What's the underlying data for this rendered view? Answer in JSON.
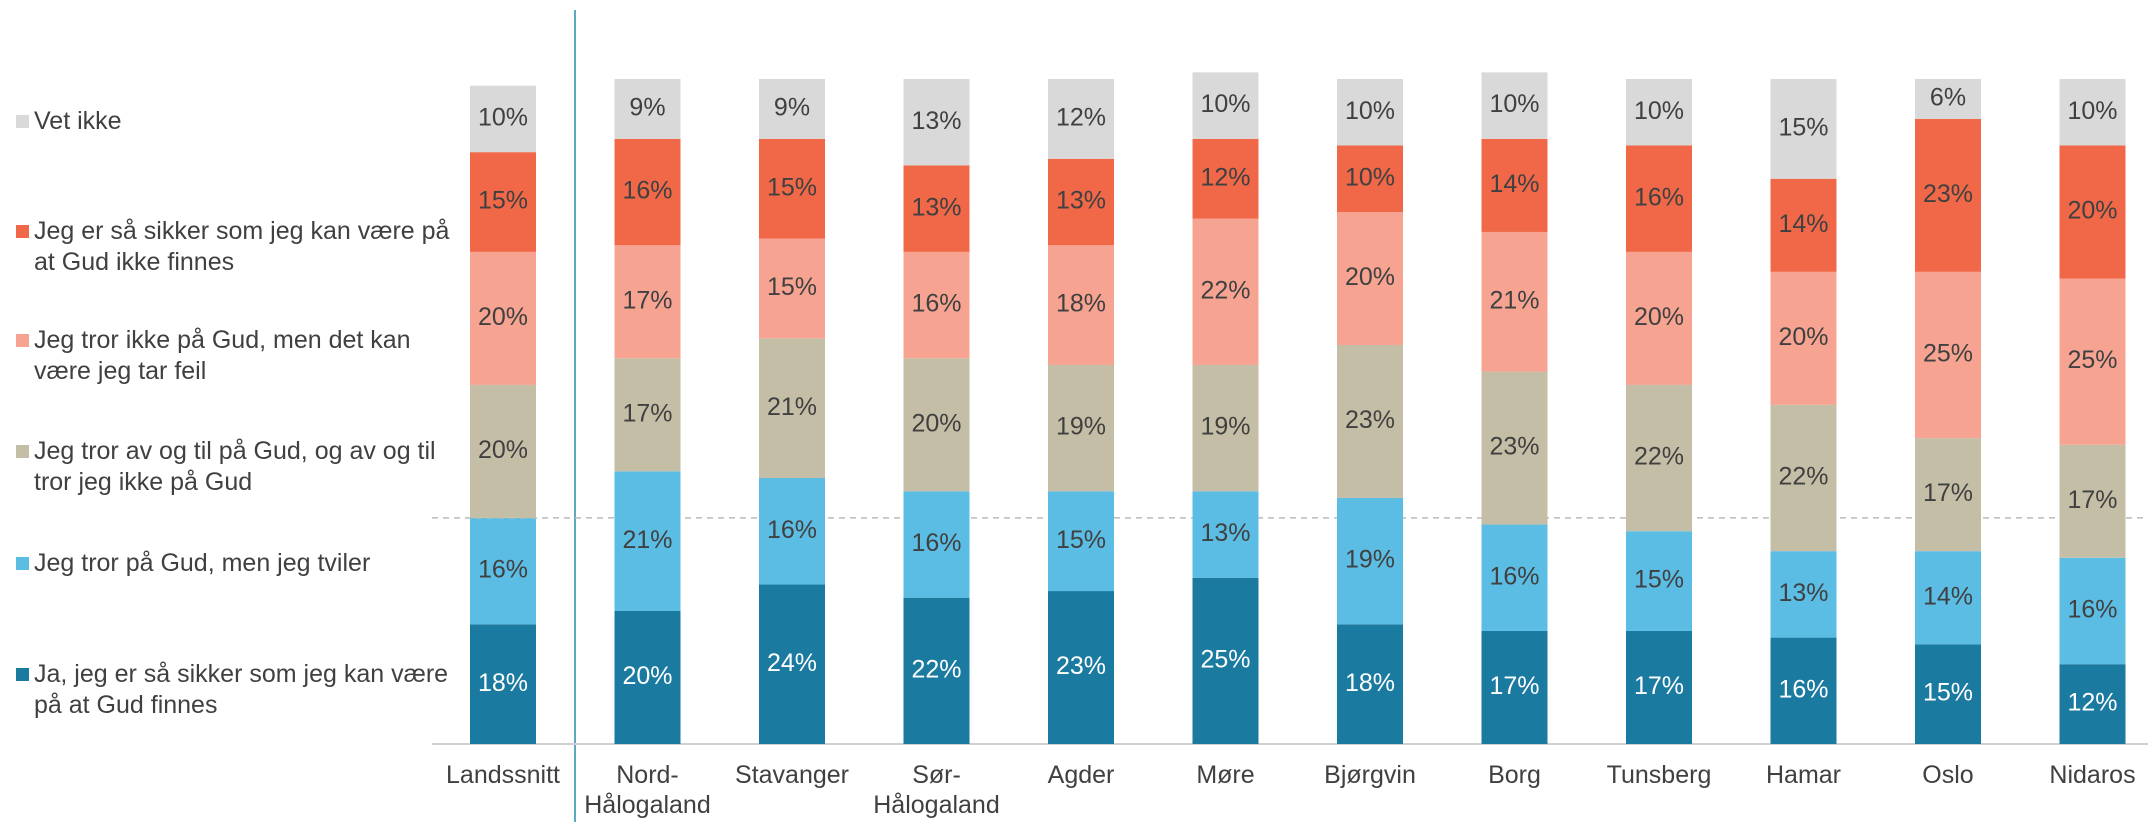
{
  "chart_data": {
    "type": "stacked_bar",
    "categories": [
      "Landssnitt",
      "Nord-Hålogaland",
      "Stavanger",
      "Sør-Hålogaland",
      "Agder",
      "Møre",
      "Bjørgvin",
      "Borg",
      "Tunsberg",
      "Hamar",
      "Oslo",
      "Nidaros"
    ],
    "ylim": [
      0,
      100
    ],
    "series": [
      {
        "name": "Ja, jeg er så sikker som jeg kan være på at Gud finnes",
        "color": "#1b7aa0",
        "values": [
          18,
          20,
          24,
          22,
          23,
          25,
          18,
          17,
          17,
          16,
          15,
          12
        ],
        "value_labels": [
          "18%",
          "20%",
          "24%",
          "22%",
          "23%",
          "25%",
          "18%",
          "17%",
          "17%",
          "16%",
          "15%",
          "12%"
        ]
      },
      {
        "name": "Jeg tror på Gud, men jeg tviler",
        "color": "#5bbde4",
        "values": [
          16,
          21,
          16,
          16,
          15,
          13,
          19,
          16,
          15,
          13,
          14,
          16
        ],
        "value_labels": [
          "16%",
          "21%",
          "16%",
          "16%",
          "15%",
          "13%",
          "19%",
          "16%",
          "15%",
          "13%",
          "14%",
          "16%"
        ]
      },
      {
        "name": "Jeg tror av og til på Gud, og av og til tror jeg ikke på Gud",
        "color": "#c5bea6",
        "values": [
          20,
          17,
          21,
          20,
          19,
          19,
          23,
          23,
          22,
          22,
          17,
          17
        ],
        "value_labels": [
          "20%",
          "17%",
          "21%",
          "20%",
          "19%",
          "19%",
          "23%",
          "23%",
          "22%",
          "22%",
          "17%",
          "17%"
        ]
      },
      {
        "name": "Jeg tror ikke på Gud, men det kan være jeg tar feil",
        "color": "#f6a491",
        "values": [
          20,
          17,
          15,
          16,
          18,
          22,
          20,
          21,
          20,
          20,
          25,
          25
        ],
        "value_labels": [
          "20%",
          "17%",
          "15%",
          "16%",
          "18%",
          "22%",
          "20%",
          "21%",
          "20%",
          "20%",
          "25%",
          "25%"
        ]
      },
      {
        "name": "Jeg er så sikker som jeg kan være på at Gud ikke finnes",
        "color": "#f06848",
        "values": [
          15,
          16,
          15,
          13,
          13,
          12,
          10,
          14,
          16,
          14,
          23,
          20
        ],
        "value_labels": [
          "15%",
          "16%",
          "15%",
          "13%",
          "13%",
          "12%",
          "10%",
          "14%",
          "16%",
          "14%",
          "23%",
          "20%"
        ]
      },
      {
        "name": "Vet ikke",
        "color": "#d9d9d9",
        "values": [
          10,
          9,
          9,
          13,
          12,
          10,
          10,
          10,
          10,
          15,
          6,
          10
        ],
        "value_labels": [
          "10%",
          "9%",
          "9%",
          "13%",
          "12%",
          "10%",
          "10%",
          "10%",
          "10%",
          "15%",
          "6%",
          "10%"
        ]
      }
    ]
  }
}
